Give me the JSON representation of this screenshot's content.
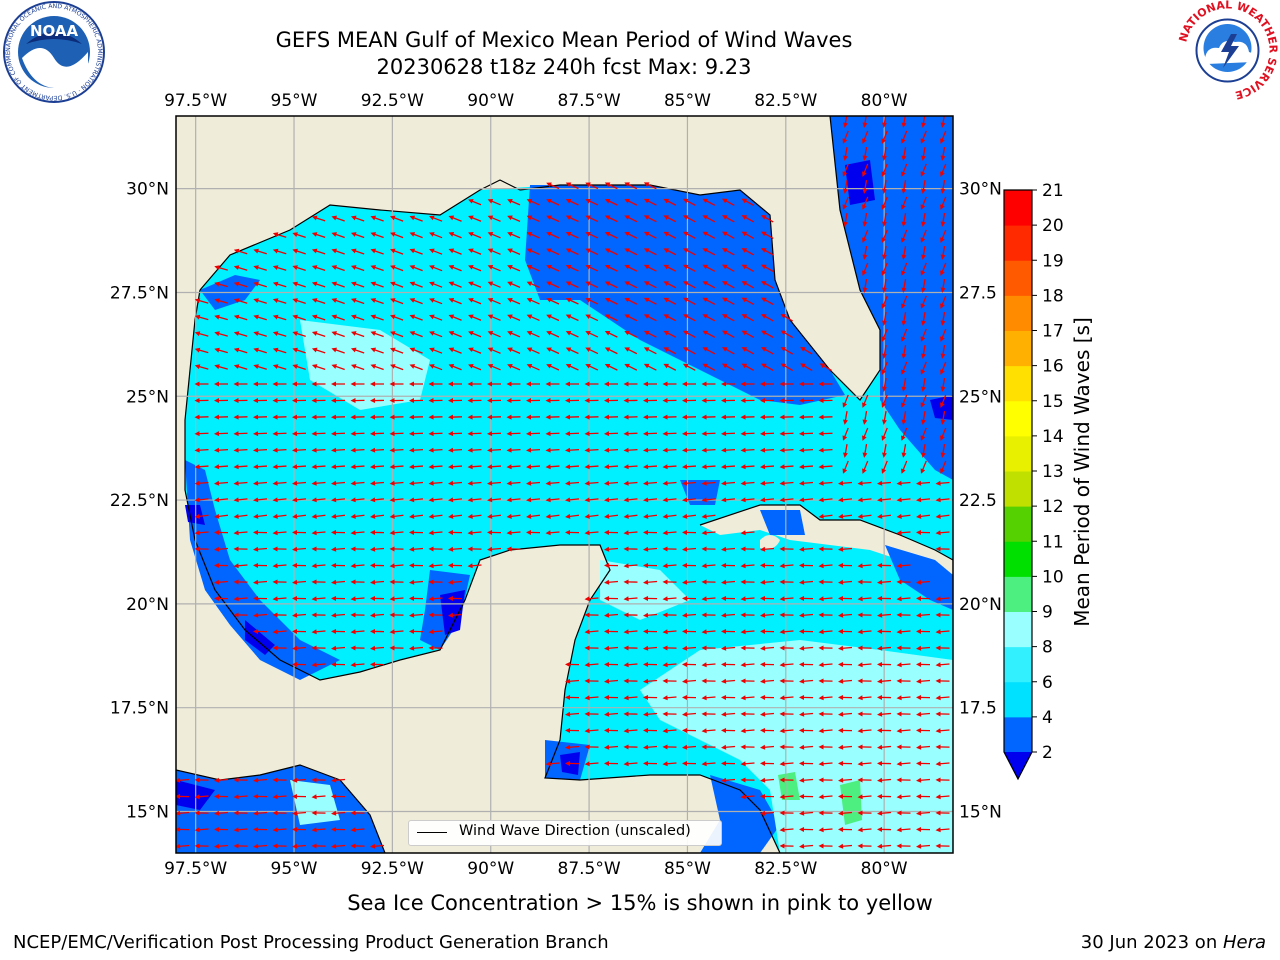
{
  "title": {
    "line1": "GEFS MEAN Gulf of Mexico Mean Period of Wind Waves",
    "line2": "20230628 t18z 240h fcst   Max: 9.23"
  },
  "map": {
    "lon_labels": [
      "97.5°W",
      "95°W",
      "92.5°W",
      "90°W",
      "87.5°W",
      "85°W",
      "82.5°W",
      "80°W"
    ],
    "lat_labels_left": [
      "30°N",
      "27.5°N",
      "25°N",
      "22.5°N",
      "20°N",
      "17.5°N",
      "15°N"
    ],
    "lat_labels_right": [
      "30°N",
      "27.5",
      "25°N",
      "22.5",
      "20°N",
      "17.5",
      "15°N"
    ],
    "legend_label": "Wind Wave Direction (unscaled)",
    "extent": {
      "lon_min": -98,
      "lon_max": -78.25,
      "lat_min": 14,
      "lat_max": 31.75
    }
  },
  "colorbar": {
    "label": "Mean Period of Wind Waves [s]",
    "ticks": [
      "2",
      "4",
      "6",
      "8",
      "9",
      "10",
      "11",
      "12",
      "13",
      "14",
      "15",
      "16",
      "17",
      "18",
      "19",
      "20",
      "21"
    ],
    "colors": [
      "#0066ff",
      "#00e0ff",
      "#33f0ff",
      "#99ffff",
      "#4df080",
      "#00e000",
      "#55d000",
      "#c0e000",
      "#e8f000",
      "#ffff00",
      "#ffe000",
      "#ffb000",
      "#ff8c00",
      "#ff5a00",
      "#ff2a00",
      "#ff0000"
    ],
    "extend_color": "#0000ee"
  },
  "colors": {
    "land": "#efecd9",
    "wave_blue": "#0066ff",
    "wave_deep": "#0000ee",
    "wave_cyan": "#00f0ff",
    "wave_light": "#99ffff",
    "wave_green": "#4df080",
    "arrow": "#ee0000",
    "grid": "#b0b0b0"
  },
  "note": "Sea Ice Concentration > 15% is shown in pink to yellow",
  "footer": {
    "left": "NCEP/EMC/Verification Post Processing Product Generation Branch",
    "right_prefix": "30 Jun 2023 on ",
    "right_machine": "Hera"
  },
  "logos": {
    "noaa_text": "NOAA",
    "noaa_ring": "NATIONAL OCEANIC AND ATMOSPHERIC ADMINISTRATION · U.S. DEPARTMENT OF COMMERCE",
    "nws_ring": "NATIONAL WEATHER SERVICE"
  }
}
